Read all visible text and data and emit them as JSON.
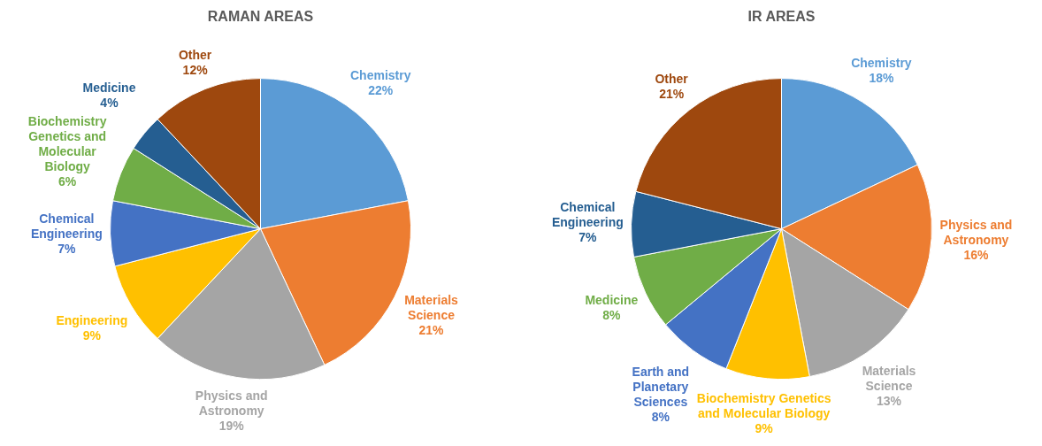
{
  "chart_data": [
    {
      "type": "pie",
      "title": "RAMAN AREAS",
      "categories": [
        "Chemistry",
        "Materials Science",
        "Physics and Astronomy",
        "Engineering",
        "Chemical Engineering",
        "Biochemistry Genetics and Molecular Biology",
        "Medicine",
        "Other"
      ],
      "values": [
        22,
        21,
        19,
        9,
        7,
        6,
        4,
        12
      ],
      "colors": [
        "#5b9bd5",
        "#ed7d31",
        "#a5a5a5",
        "#ffc000",
        "#4472c4",
        "#70ad47",
        "#255e91",
        "#9e480e"
      ],
      "value_labels": [
        "22%",
        "21%",
        "19%",
        "9%",
        "7%",
        "6%",
        "4%",
        "12%"
      ]
    },
    {
      "type": "pie",
      "title": "IR AREAS",
      "categories": [
        "Chemistry",
        "Physics and Astronomy",
        "Materials Science",
        "Biochemistry Genetics and Molecular Biology",
        "Earth and Planetary Sciences",
        "Medicine",
        "Chemical Engineering",
        "Other"
      ],
      "values": [
        18,
        16,
        13,
        9,
        8,
        8,
        7,
        21
      ],
      "colors": [
        "#5b9bd5",
        "#ed7d31",
        "#a5a5a5",
        "#ffc000",
        "#4472c4",
        "#70ad47",
        "#255e91",
        "#9e480e"
      ],
      "value_labels": [
        "18%",
        "16%",
        "13%",
        "9%",
        "8%",
        "8%",
        "7%",
        "21%"
      ]
    }
  ]
}
